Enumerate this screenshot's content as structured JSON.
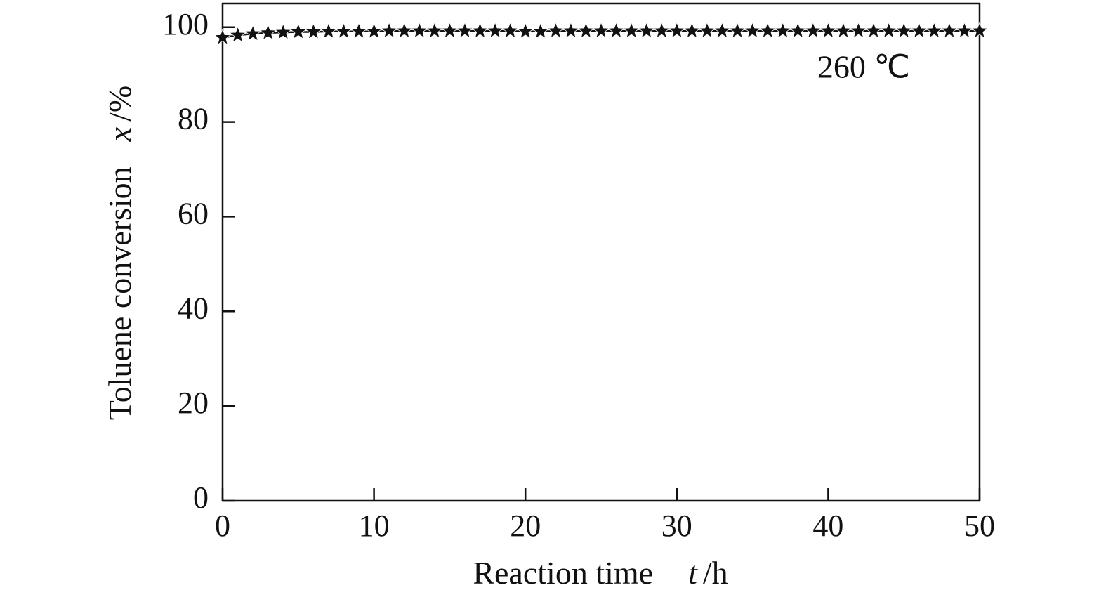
{
  "chart_data": {
    "type": "line",
    "xlabel": {
      "text": "Reaction time",
      "symbol": "t",
      "unit": "/h"
    },
    "ylabel": {
      "text": "Toluene conversion",
      "symbol": "x",
      "unit": "/%"
    },
    "annotation": "260 ℃",
    "x": [
      0,
      1,
      2,
      3,
      4,
      5,
      6,
      7,
      8,
      9,
      10,
      11,
      12,
      13,
      14,
      15,
      16,
      17,
      18,
      19,
      20,
      21,
      22,
      23,
      24,
      25,
      26,
      27,
      28,
      29,
      30,
      31,
      32,
      33,
      34,
      35,
      36,
      37,
      38,
      39,
      40,
      41,
      42,
      43,
      44,
      45,
      46,
      47,
      48,
      49,
      50
    ],
    "series": [
      {
        "color": "#111111",
        "values": [
          97.8,
          98.3,
          98.6,
          98.8,
          98.9,
          99.0,
          99.0,
          99.1,
          99.1,
          99.1,
          99.1,
          99.2,
          99.2,
          99.2,
          99.2,
          99.2,
          99.2,
          99.2,
          99.2,
          99.2,
          99.1,
          99.1,
          99.2,
          99.2,
          99.2,
          99.2,
          99.2,
          99.2,
          99.2,
          99.2,
          99.2,
          99.2,
          99.2,
          99.2,
          99.2,
          99.2,
          99.2,
          99.2,
          99.2,
          99.2,
          99.2,
          99.2,
          99.2,
          99.2,
          99.2,
          99.2,
          99.2,
          99.2,
          99.2,
          99.2,
          99.2
        ]
      }
    ],
    "xlim": [
      0,
      50
    ],
    "xticks": [
      0,
      10,
      20,
      30,
      40,
      50
    ],
    "ylim": [
      0,
      105
    ],
    "yticks": [
      0,
      20,
      40,
      60,
      80,
      100
    ]
  }
}
